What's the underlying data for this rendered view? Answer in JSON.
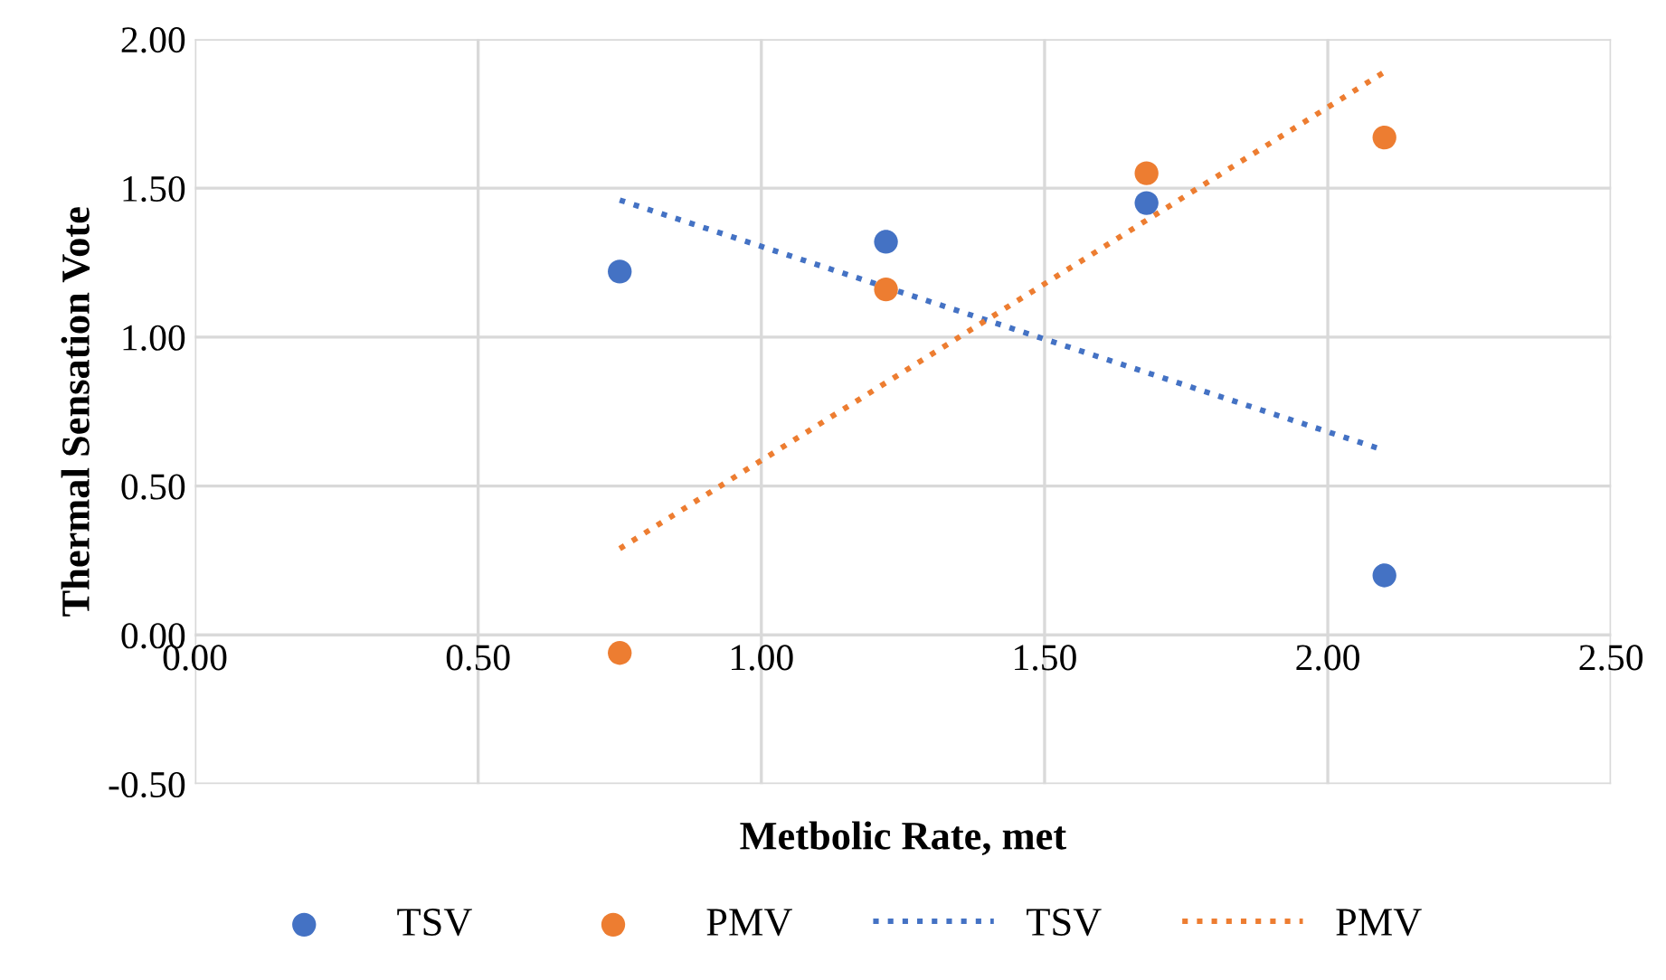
{
  "chart_data": {
    "type": "scatter",
    "xlabel": "Metbolic Rate, met",
    "ylabel": "Thermal Sensation Vote",
    "xlim": [
      0,
      2.5
    ],
    "xticks": [
      {
        "value": 0,
        "label": "0.00"
      },
      {
        "value": 0.5,
        "label": "0.50"
      },
      {
        "value": 1,
        "label": "1.00"
      },
      {
        "value": 1.5,
        "label": "1.50"
      },
      {
        "value": 2,
        "label": "2.00"
      },
      {
        "value": 2.5,
        "label": "2.50"
      }
    ],
    "ylim": [
      -0.5,
      2
    ],
    "yticks": [
      {
        "value": -0.5,
        "label": "-0.50"
      },
      {
        "value": 0,
        "label": "0.00"
      },
      {
        "value": 0.5,
        "label": "0.50"
      },
      {
        "value": 1,
        "label": "1.00"
      },
      {
        "value": 1.5,
        "label": "1.50"
      },
      {
        "value": 2,
        "label": "2.00"
      }
    ],
    "grid": true,
    "legend": "bottom",
    "series": [
      {
        "name": "TSV",
        "marker": "circle",
        "color": "#4472c4",
        "x": [
          0.75,
          1.22,
          1.68,
          2.1
        ],
        "values": [
          1.22,
          1.32,
          1.45,
          0.2
        ]
      },
      {
        "name": "PMV",
        "marker": "circle",
        "color": "#ed7d31",
        "x": [
          0.75,
          1.22,
          1.68,
          2.1
        ],
        "values": [
          -0.06,
          1.16,
          1.55,
          1.67
        ]
      },
      {
        "name": "TSV",
        "type": "line",
        "line_style": "dotted",
        "color": "#4472c4",
        "x": [
          0.75,
          2.1
        ],
        "values": [
          1.46,
          0.62
        ]
      },
      {
        "name": "PMV",
        "type": "line",
        "line_style": "dotted",
        "color": "#ed7d31",
        "x": [
          0.75,
          2.1
        ],
        "values": [
          0.29,
          1.89
        ]
      }
    ]
  }
}
